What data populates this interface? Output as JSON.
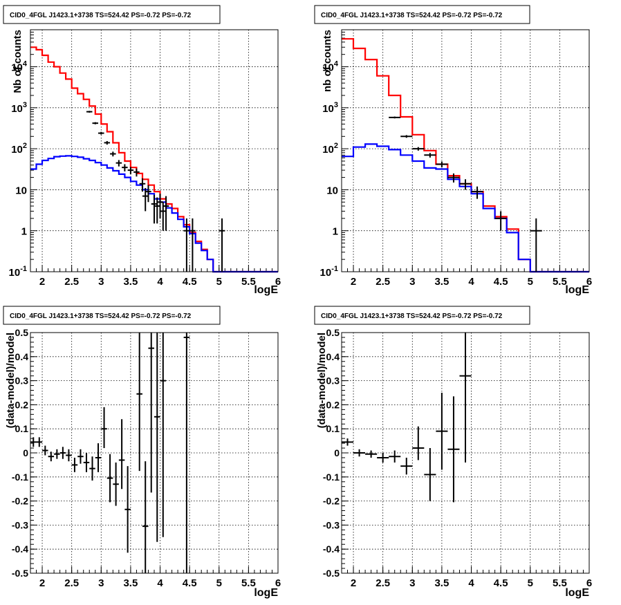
{
  "chart_data": [
    {
      "type": "line",
      "title": "CID0_4FGL J1423.1+3738 TS=524.42 PS=-0.72 PS=-0.72",
      "xlabel": "logE",
      "ylabel": "Nb of counts",
      "xlim": [
        1.8,
        6.0
      ],
      "ylim": [
        0.1,
        80000
      ],
      "yscale": "log",
      "grid": true,
      "x_ticks": [
        "2",
        "2.5",
        "3",
        "3.5",
        "4",
        "4.5",
        "5",
        "5.5",
        "6"
      ],
      "y_ticks": [
        "10^{-1}",
        "1",
        "10",
        "10^{2}",
        "10^{3}",
        "10^{4}"
      ],
      "bin_edges": [
        1.8,
        1.9,
        2.0,
        2.1,
        2.2,
        2.3,
        2.4,
        2.5,
        2.6,
        2.7,
        2.8,
        2.9,
        3.0,
        3.1,
        3.2,
        3.3,
        3.4,
        3.5,
        3.6,
        3.7,
        3.8,
        3.9,
        4.0,
        4.1,
        4.2,
        4.3,
        4.4,
        4.5,
        4.6,
        4.7,
        4.8,
        4.9,
        5.0,
        5.1,
        5.2,
        5.3,
        5.4,
        5.5,
        5.6,
        5.7,
        5.8,
        5.9,
        6.0
      ],
      "series": [
        {
          "color": "#ff0000",
          "values": [
            30000,
            26000,
            19000,
            13000,
            10000,
            7000,
            5000,
            3000,
            2200,
            1600,
            1100,
            700,
            400,
            260,
            140,
            80,
            50,
            35,
            25,
            18,
            13,
            9,
            6,
            4.5,
            3.5,
            2.2,
            1.4,
            0.9,
            0.55,
            0.35,
            0.2,
            0.1,
            0.1,
            0.1,
            0.1,
            0.1,
            0.1,
            0.1,
            0.1,
            0.1,
            0.1,
            0.1
          ]
        },
        {
          "color": "#0000ff",
          "values": [
            32,
            42,
            52,
            58,
            64,
            66,
            67,
            65,
            62,
            57,
            52,
            46,
            40,
            34,
            29,
            24,
            20,
            16,
            13,
            10,
            8,
            6,
            5,
            3.6,
            2.7,
            1.9,
            1.25,
            0.85,
            0.5,
            0.33,
            0.2,
            0.1,
            0.1,
            0.1,
            0.1,
            0.1,
            0.1,
            0.1,
            0.1,
            0.1,
            0.1,
            0.1
          ]
        }
      ],
      "data_points": {
        "x": [
          2.8,
          2.9,
          3.0,
          3.1,
          3.2,
          3.3,
          3.4,
          3.5,
          3.6,
          3.7,
          3.75,
          3.8,
          3.9,
          3.95,
          4.0,
          4.05,
          4.1,
          4.45,
          4.55,
          5.05
        ],
        "y": [
          800,
          420,
          240,
          140,
          75,
          45,
          35,
          30,
          27,
          14,
          7,
          9,
          4.5,
          4,
          5,
          3,
          4,
          1,
          1,
          1
        ],
        "err_lo": [
          40,
          25,
          18,
          14,
          10,
          8,
          7,
          6,
          6,
          5,
          4,
          4,
          3,
          2.5,
          3,
          2,
          3,
          1,
          1,
          1
        ],
        "err_hi": [
          40,
          25,
          18,
          14,
          10,
          8,
          7,
          6,
          6,
          5,
          4,
          4,
          3,
          2.5,
          3,
          2,
          3,
          1,
          1,
          1
        ],
        "xerr": [
          0.05,
          0.05,
          0.05,
          0.05,
          0.05,
          0.05,
          0.05,
          0.05,
          0.05,
          0.05,
          0.05,
          0.05,
          0.05,
          0.05,
          0.05,
          0.05,
          0.05,
          0.05,
          0.05,
          0.05
        ]
      }
    },
    {
      "type": "line",
      "title": "CID0_4FGL J1423.1+3738 TS=524.42 PS=-0.72 PS=-0.72",
      "xlabel": "logE",
      "ylabel": "nb of counts",
      "xlim": [
        1.8,
        6.0
      ],
      "ylim": [
        0.1,
        80000
      ],
      "yscale": "log",
      "grid": true,
      "x_ticks": [
        "2",
        "2.5",
        "3",
        "3.5",
        "4",
        "4.5",
        "5",
        "5.5",
        "6"
      ],
      "y_ticks": [
        "10^{-1}",
        "1",
        "10",
        "10^{2}",
        "10^{3}",
        "10^{4}"
      ],
      "bin_edges": [
        1.8,
        2.0,
        2.2,
        2.4,
        2.6,
        2.8,
        3.0,
        3.2,
        3.4,
        3.6,
        3.8,
        4.0,
        4.2,
        4.4,
        4.6,
        4.8,
        5.0,
        5.2,
        5.4,
        5.6,
        5.8,
        6.0
      ],
      "series": [
        {
          "color": "#ff0000",
          "values": [
            48000,
            28000,
            15000,
            6000,
            2000,
            600,
            220,
            90,
            42,
            22,
            14,
            9,
            4,
            2.2,
            1.1,
            0.2,
            0.1,
            0.1,
            0.1,
            0.1,
            0.1
          ]
        },
        {
          "color": "#0000ff",
          "values": [
            65,
            110,
            130,
            115,
            95,
            70,
            50,
            34,
            32,
            18,
            12,
            8,
            3.5,
            2,
            0.9,
            0.2,
            0.1,
            0.1,
            0.1,
            0.1,
            0.1
          ]
        }
      ],
      "data_points": {
        "x": [
          2.7,
          2.9,
          3.1,
          3.3,
          3.5,
          3.7,
          3.9,
          4.1,
          4.5,
          5.1
        ],
        "y": [
          580,
          200,
          100,
          70,
          42,
          20,
          14,
          9,
          2,
          1
        ],
        "err_lo": [
          30,
          15,
          10,
          9,
          7,
          5,
          4,
          3,
          1,
          1
        ],
        "err_hi": [
          30,
          15,
          10,
          9,
          7,
          5,
          4,
          3,
          1,
          1
        ],
        "xerr": [
          0.1,
          0.1,
          0.1,
          0.1,
          0.1,
          0.1,
          0.1,
          0.1,
          0.1,
          0.1
        ]
      }
    },
    {
      "type": "scatter",
      "title": "CID0_4FGL J1423.1+3738 TS=524.42 PS=-0.72 PS=-0.72",
      "xlabel": "logE",
      "ylabel": "(data-model)/model",
      "xlim": [
        1.8,
        6.0
      ],
      "ylim": [
        -0.5,
        0.5
      ],
      "grid": true,
      "x_ticks": [
        "2",
        "2.5",
        "3",
        "3.5",
        "4",
        "4.5",
        "5",
        "5.5",
        "6"
      ],
      "y_ticks": [
        "-0.5",
        "-0.4",
        "-0.3",
        "-0.2",
        "-0.1",
        "0",
        "0.1",
        "0.2",
        "0.3",
        "0.4",
        "0.5"
      ],
      "points": {
        "x": [
          1.85,
          1.95,
          2.05,
          2.15,
          2.25,
          2.35,
          2.45,
          2.55,
          2.65,
          2.75,
          2.85,
          2.95,
          3.05,
          3.15,
          3.25,
          3.35,
          3.45,
          3.65,
          3.75,
          3.85,
          3.95,
          4.05,
          4.45
        ],
        "y": [
          0.045,
          0.045,
          0.01,
          -0.015,
          -0.005,
          0.0,
          -0.01,
          -0.05,
          -0.015,
          -0.04,
          -0.065,
          -0.02,
          0.1,
          -0.105,
          -0.13,
          -0.03,
          -0.235,
          0.245,
          -0.305,
          0.435,
          0.15,
          0.3,
          0.48
        ],
        "err_lo": [
          0.02,
          0.02,
          0.02,
          0.02,
          0.02,
          0.025,
          0.025,
          0.03,
          0.03,
          0.04,
          0.05,
          0.06,
          0.08,
          0.1,
          0.09,
          0.12,
          0.18,
          0.32,
          0.27,
          0.6,
          0.52,
          0.65,
          0.99
        ],
        "err_hi": [
          0.02,
          0.02,
          0.02,
          0.02,
          0.02,
          0.025,
          0.025,
          0.03,
          0.03,
          0.04,
          0.05,
          0.06,
          0.09,
          0.1,
          0.09,
          0.17,
          0.18,
          0.32,
          0.27,
          0.6,
          0.52,
          0.65,
          0.99
        ],
        "xerr": [
          0.05,
          0.05,
          0.05,
          0.05,
          0.05,
          0.05,
          0.05,
          0.05,
          0.05,
          0.05,
          0.05,
          0.05,
          0.05,
          0.05,
          0.05,
          0.05,
          0.05,
          0.05,
          0.05,
          0.05,
          0.05,
          0.05,
          0.05
        ]
      }
    },
    {
      "type": "scatter",
      "title": "CID0_4FGL J1423.1+3738 TS=524.42 PS=-0.72 PS=-0.72",
      "xlabel": "logE",
      "ylabel": "(data-model)/model",
      "xlim": [
        1.8,
        6.0
      ],
      "ylim": [
        -0.5,
        0.5
      ],
      "grid": true,
      "x_ticks": [
        "2",
        "2.5",
        "3",
        "3.5",
        "4",
        "4.5",
        "5",
        "5.5",
        "6"
      ],
      "y_ticks": [
        "-0.5",
        "-0.4",
        "-0.3",
        "-0.2",
        "-0.1",
        "0",
        "0.1",
        "0.2",
        "0.3",
        "0.4",
        "0.5"
      ],
      "points": {
        "x": [
          1.9,
          2.1,
          2.3,
          2.5,
          2.7,
          2.9,
          3.1,
          3.3,
          3.5,
          3.7,
          3.9
        ],
        "y": [
          0.045,
          0.0,
          -0.005,
          -0.02,
          -0.015,
          -0.055,
          0.02,
          -0.09,
          0.09,
          0.015,
          0.32
        ],
        "err_lo": [
          0.015,
          0.015,
          0.015,
          0.02,
          0.025,
          0.035,
          0.05,
          0.11,
          0.16,
          0.22,
          0.36
        ],
        "err_hi": [
          0.015,
          0.015,
          0.015,
          0.02,
          0.025,
          0.035,
          0.09,
          0.11,
          0.16,
          0.22,
          0.36
        ],
        "xerr": [
          0.1,
          0.1,
          0.1,
          0.1,
          0.1,
          0.1,
          0.1,
          0.1,
          0.1,
          0.1,
          0.1
        ]
      }
    }
  ]
}
